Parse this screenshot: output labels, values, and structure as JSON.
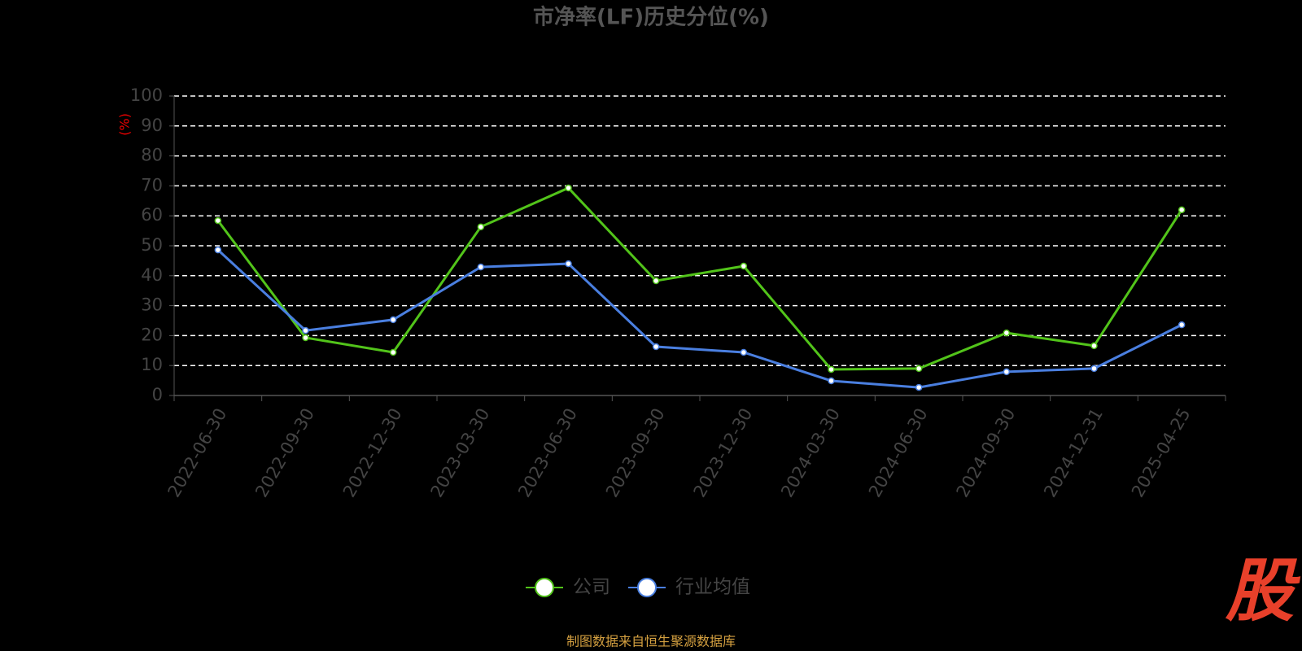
{
  "chart_data": {
    "type": "line",
    "title": "市净率(LF)历史分位(%)",
    "y_label": "(%)",
    "categories": [
      "2022-06-30",
      "2022-09-30",
      "2022-12-30",
      "2023-03-30",
      "2023-06-30",
      "2023-09-30",
      "2023-12-30",
      "2024-03-30",
      "2024-06-30",
      "2024-09-30",
      "2024-12-31",
      "2025-04-25"
    ],
    "series": [
      {
        "name": "公司",
        "color": "#52c41a",
        "values": [
          58.4,
          19.3,
          14.4,
          56.3,
          69.3,
          38.3,
          43.2,
          8.7,
          9.0,
          20.9,
          16.6,
          62.0
        ]
      },
      {
        "name": "行业均值",
        "color": "#4a7fe0",
        "values": [
          48.6,
          21.7,
          25.3,
          42.9,
          44.0,
          16.3,
          14.4,
          4.9,
          2.7,
          7.9,
          9.0,
          23.6
        ]
      }
    ],
    "ylim": [
      0,
      100
    ],
    "yticks": [
      0,
      10,
      20,
      30,
      40,
      50,
      60,
      70,
      80,
      90,
      100
    ],
    "grid": true,
    "legend": "bottom",
    "source": "制图数据来自恒生聚源数据库",
    "watermark": "股"
  }
}
